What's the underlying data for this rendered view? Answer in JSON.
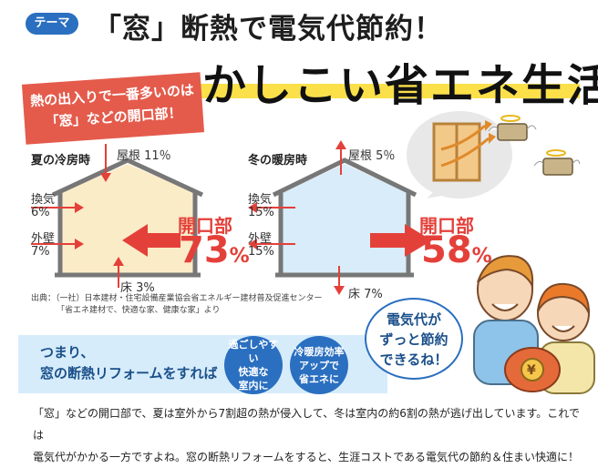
{
  "header": {
    "theme_badge": "テーマ",
    "headline": "「窓」断熱で電気代節約！",
    "title": "かしこい省エネ生活"
  },
  "callout": {
    "line1": "熱の出入りで一番多いのは",
    "line2": "「窓」などの開口部！"
  },
  "summer": {
    "title": "夏の冷房時",
    "roof": "屋根 11％",
    "vent_label": "換気",
    "vent_value": "6%",
    "wall_label": "外壁",
    "wall_value": "7%",
    "floor": "床 3%",
    "opening_label": "開口部",
    "opening_value": "73",
    "opening_unit": "%"
  },
  "winter": {
    "title": "冬の暖房時",
    "roof": "屋根 5％",
    "vent_label": "換気",
    "vent_value": "15%",
    "wall_label": "外壁",
    "wall_value": "15%",
    "floor": "床 7%",
    "opening_label": "開口部",
    "opening_value": "58",
    "opening_unit": "%"
  },
  "source": {
    "line1": "出典：（一社）日本建材・住宅設備産業協会省エネルギー建材普及促進センター",
    "line2": "「省エネ建材で、快適な家、健康な家」より"
  },
  "band": {
    "line1": "つまり、",
    "line2": "窓の断熱リフォームをすれば",
    "circle1": [
      "過ごしやすい",
      "快適な",
      "室内に"
    ],
    "circle2": [
      "冷暖房効率",
      "アップで",
      "省エネに"
    ]
  },
  "speech": {
    "lines": [
      "電気代が",
      "ずっと節約",
      "できるね！"
    ]
  },
  "footer": {
    "line1": "「窓」などの開口部で、夏は室外から7割超の熱が侵入して、冬は室内の約6割の熱が逃げ出しています。これでは",
    "line2": "電気代がかかる一方ですよね。窓の断熱リフォームをすると、生涯コストである電気代の節約＆住まい快適に！"
  },
  "colors": {
    "accent_red": "#e4403a",
    "brand_blue": "#2a6fc0",
    "summer_fill": "#fbecc8",
    "winter_fill": "#d8ecf9",
    "highlight_yellow": "#fbe04a"
  }
}
